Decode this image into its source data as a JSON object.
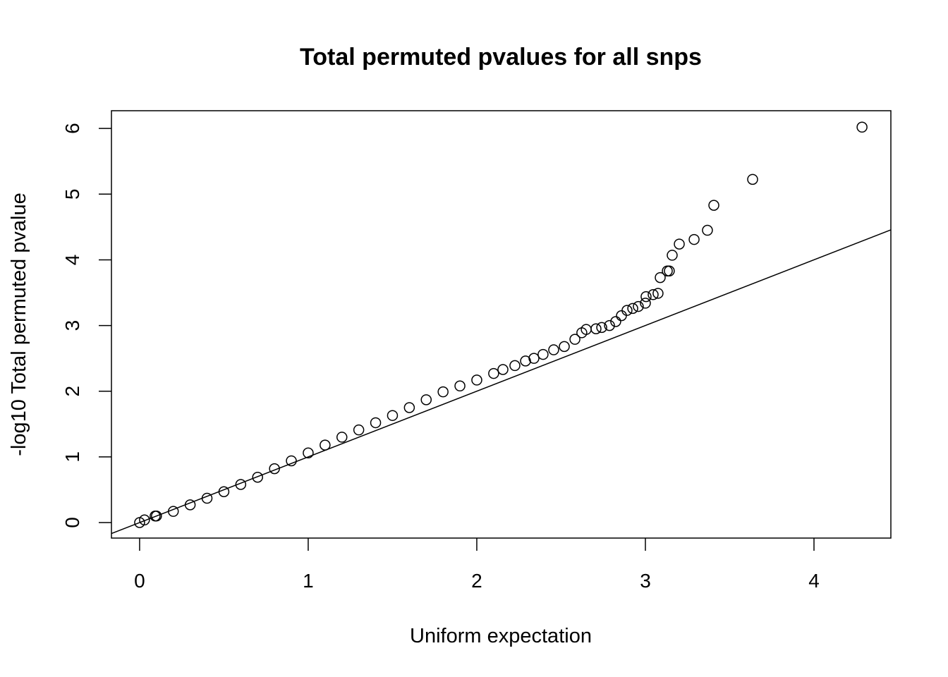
{
  "chart_data": {
    "type": "scatter",
    "title": "Total permuted pvalues for all snps",
    "x_label": "Uniform expectation",
    "y_label": "-log10 Total permuted pvalue",
    "x": [
      0,
      0.029,
      0.092,
      0.1,
      0.2,
      0.3,
      0.4,
      0.5,
      0.6,
      0.7,
      0.8,
      0.9,
      1.0,
      1.1,
      1.2,
      1.3,
      1.4,
      1.5,
      1.6,
      1.7,
      1.8,
      1.9,
      2.0,
      2.1,
      2.155,
      2.226,
      2.289,
      2.339,
      2.393,
      2.456,
      2.519,
      2.582,
      2.623,
      2.649,
      2.707,
      2.741,
      2.787,
      2.824,
      2.858,
      2.891,
      2.925,
      2.958,
      3.0,
      3.004,
      3.046,
      3.075,
      3.088,
      3.13,
      3.142,
      3.159,
      3.201,
      3.289,
      3.368,
      3.406,
      3.636,
      4.285
    ],
    "values": [
      0,
      0.04,
      0.1,
      0.1,
      0.17,
      0.27,
      0.37,
      0.47,
      0.58,
      0.69,
      0.82,
      0.94,
      1.06,
      1.18,
      1.3,
      1.41,
      1.52,
      1.63,
      1.75,
      1.87,
      1.99,
      2.08,
      2.17,
      2.27,
      2.33,
      2.39,
      2.46,
      2.5,
      2.56,
      2.63,
      2.68,
      2.79,
      2.89,
      2.94,
      2.95,
      2.97,
      3.0,
      3.06,
      3.15,
      3.23,
      3.26,
      3.29,
      3.34,
      3.44,
      3.47,
      3.49,
      3.73,
      3.83,
      3.83,
      4.07,
      4.24,
      4.31,
      4.45,
      4.83,
      5.225,
      6.02
    ],
    "abline": {
      "intercept": 0,
      "slope": 1
    },
    "xlim": [
      -0.167,
      4.456
    ],
    "ylim": [
      -0.236,
      6.27
    ],
    "xticks": [
      0,
      1,
      2,
      3,
      4
    ],
    "yticks": [
      0,
      1,
      2,
      3,
      4,
      5,
      6
    ]
  }
}
